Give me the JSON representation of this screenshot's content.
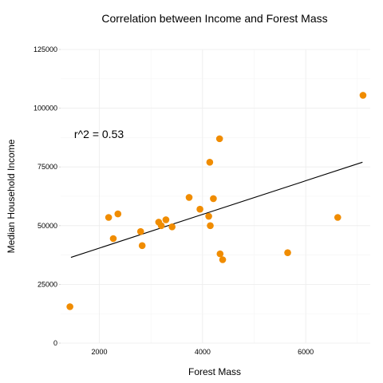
{
  "chart_data": {
    "type": "scatter",
    "title": "Correlation between Income and Forest Mass",
    "xlabel": "Forest Mass",
    "ylabel": "Median Household Income",
    "xlim": [
      1250,
      7250
    ],
    "ylim": [
      0,
      125000
    ],
    "x_ticks": [
      2000,
      4000,
      6000
    ],
    "y_ticks": [
      0,
      25000,
      50000,
      75000,
      100000,
      125000
    ],
    "x_tick_labels": [
      "2000",
      "4000",
      "6000"
    ],
    "y_tick_labels": [
      "0",
      "25000",
      "50000",
      "75000",
      "100000",
      "125000"
    ],
    "grid": true,
    "point_color": "#f08c00",
    "line_color": "#000000",
    "annotation": {
      "text": "r^2 = 0.53",
      "x": 1450,
      "y": 89000
    },
    "trendline": {
      "x": [
        1450,
        7100
      ],
      "y": [
        36500,
        77000
      ]
    },
    "points": [
      {
        "x": 1430,
        "y": 15500
      },
      {
        "x": 2180,
        "y": 53500
      },
      {
        "x": 2270,
        "y": 44500
      },
      {
        "x": 2360,
        "y": 55000
      },
      {
        "x": 2800,
        "y": 47500
      },
      {
        "x": 2830,
        "y": 41500
      },
      {
        "x": 3150,
        "y": 51500
      },
      {
        "x": 3200,
        "y": 50000
      },
      {
        "x": 3290,
        "y": 52500
      },
      {
        "x": 3410,
        "y": 49500
      },
      {
        "x": 3740,
        "y": 62000
      },
      {
        "x": 3950,
        "y": 57000
      },
      {
        "x": 4120,
        "y": 54000
      },
      {
        "x": 4140,
        "y": 77000
      },
      {
        "x": 4150,
        "y": 50000
      },
      {
        "x": 4210,
        "y": 61500
      },
      {
        "x": 4330,
        "y": 87000
      },
      {
        "x": 4340,
        "y": 38000
      },
      {
        "x": 4390,
        "y": 35500
      },
      {
        "x": 5650,
        "y": 38500
      },
      {
        "x": 6620,
        "y": 53500
      },
      {
        "x": 7110,
        "y": 105500
      }
    ]
  }
}
